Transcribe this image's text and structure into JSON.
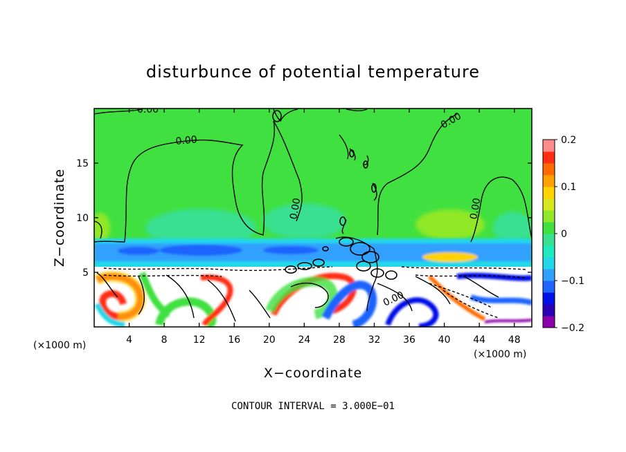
{
  "chart_data": {
    "type": "heatmap",
    "title": "disturbunce of potential temperature",
    "xlabel": "X−coordinate",
    "ylabel": "Z−coordinate",
    "x_unit_left": "(×1000 m)",
    "x_unit_right": "(×1000 m)",
    "xlim": [
      0,
      50
    ],
    "ylim": [
      0,
      20
    ],
    "x_ticks": [
      4,
      8,
      12,
      16,
      20,
      24,
      28,
      32,
      36,
      40,
      44,
      48
    ],
    "y_ticks": [
      5,
      10,
      15
    ],
    "x_tick_labels": [
      "4",
      "8",
      "12",
      "16",
      "20",
      "24",
      "28",
      "32",
      "36",
      "40",
      "44",
      "48"
    ],
    "y_tick_labels": [
      "5",
      "10",
      "15"
    ],
    "colorbar": {
      "range": [
        -0.2,
        0.2
      ],
      "tick_labels": [
        "0.2",
        "0.1",
        "0",
        "−0.1",
        "−0.2"
      ],
      "tick_values": [
        0.2,
        0.1,
        0,
        -0.1,
        -0.2
      ],
      "colors": [
        "#8b00a8",
        "#2a00b4",
        "#0010e6",
        "#1e64ff",
        "#30a0ff",
        "#20d8e8",
        "#20e8c0",
        "#38e090",
        "#40e040",
        "#90e828",
        "#d8e820",
        "#ffd200",
        "#ffa000",
        "#ff6a00",
        "#ff2d14",
        "#ff8a8a"
      ]
    },
    "contour_labels": [
      "0.00",
      "0.00",
      "0.00",
      "0.00",
      "0.00",
      "0.00"
    ],
    "footer": "CONTOUR INTERVAL = 3.000E−01",
    "grid": false,
    "legend": "colorbar-right"
  }
}
